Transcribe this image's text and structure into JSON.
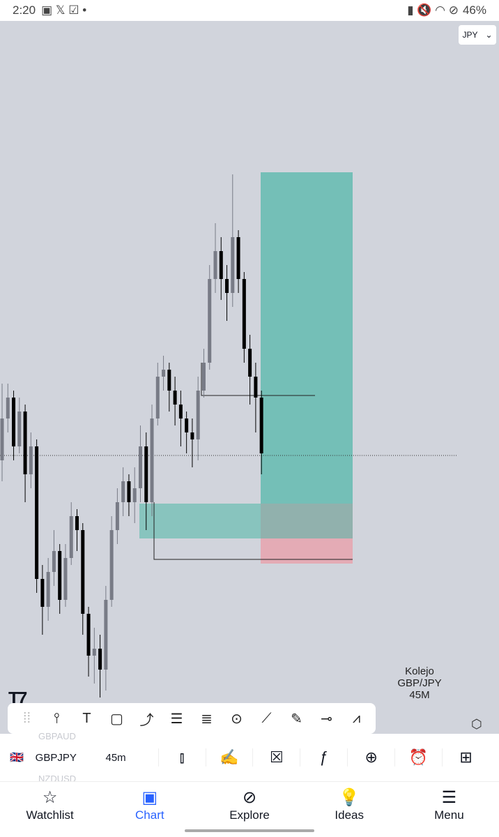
{
  "status": {
    "time": "2:20",
    "battery": "46%"
  },
  "chart": {
    "currency": "JPY",
    "symbol": "GBPJPY",
    "interval": "45m",
    "signature": [
      "Kolejo",
      "GBP/JPY",
      "45M"
    ],
    "bull_color": "#787b86",
    "bear_color": "#000000",
    "bg": "#d1d4dc",
    "current_price_line": 195.87,
    "position": {
      "type": "long",
      "target": 199.93,
      "entry": 195.18,
      "stop": 194.32,
      "profit_color": "#4db6a6",
      "loss_color": "#e8a0ab"
    },
    "zone": {
      "top": 195.18,
      "bottom": 194.68
    },
    "levels": [
      196.73,
      194.38
    ],
    "candles": [
      [
        195.8,
        196.9,
        195.5,
        196.4
      ],
      [
        196.4,
        196.9,
        196.2,
        196.7
      ],
      [
        196.7,
        196.8,
        195.8,
        196.0
      ],
      [
        196.0,
        196.7,
        195.9,
        196.5
      ],
      [
        196.5,
        196.6,
        195.2,
        195.6
      ],
      [
        195.6,
        196.2,
        195.4,
        196.0
      ],
      [
        196.0,
        196.1,
        193.9,
        194.1
      ],
      [
        194.1,
        194.3,
        193.3,
        193.7
      ],
      [
        193.7,
        194.4,
        193.5,
        194.2
      ],
      [
        194.2,
        194.8,
        194.0,
        194.5
      ],
      [
        194.5,
        194.6,
        193.6,
        193.8
      ],
      [
        193.8,
        194.6,
        193.7,
        194.4
      ],
      [
        194.4,
        195.2,
        194.3,
        195.0
      ],
      [
        195.0,
        195.1,
        194.5,
        194.8
      ],
      [
        194.8,
        194.9,
        193.3,
        193.6
      ],
      [
        193.6,
        193.7,
        192.7,
        193.0
      ],
      [
        193.0,
        193.4,
        192.6,
        193.1
      ],
      [
        193.1,
        193.3,
        192.4,
        192.8
      ],
      [
        192.8,
        194.0,
        192.5,
        193.8
      ],
      [
        193.8,
        195.0,
        193.7,
        194.8
      ],
      [
        194.8,
        195.4,
        194.6,
        195.2
      ],
      [
        195.2,
        195.7,
        195.0,
        195.5
      ],
      [
        195.5,
        195.6,
        195.0,
        195.2
      ],
      [
        195.2,
        195.7,
        194.9,
        195.4
      ],
      [
        195.4,
        196.3,
        195.2,
        196.0
      ],
      [
        196.0,
        196.2,
        194.8,
        195.2
      ],
      [
        195.2,
        196.6,
        195.0,
        196.4
      ],
      [
        196.4,
        197.2,
        196.3,
        197.0
      ],
      [
        197.0,
        197.3,
        196.8,
        197.1
      ],
      [
        197.1,
        197.2,
        196.5,
        196.8
      ],
      [
        196.8,
        197.0,
        196.3,
        196.6
      ],
      [
        196.6,
        196.8,
        196.0,
        196.4
      ],
      [
        196.4,
        196.5,
        195.9,
        196.2
      ],
      [
        196.2,
        196.4,
        195.7,
        196.1
      ],
      [
        196.1,
        197.0,
        195.8,
        196.8
      ],
      [
        196.8,
        197.4,
        196.7,
        197.2
      ],
      [
        197.2,
        198.6,
        197.1,
        198.4
      ],
      [
        198.4,
        199.2,
        198.2,
        198.8
      ],
      [
        198.8,
        199.0,
        198.1,
        198.4
      ],
      [
        198.4,
        198.6,
        197.8,
        198.2
      ],
      [
        198.2,
        199.9,
        198.0,
        199.0
      ],
      [
        199.0,
        199.1,
        198.2,
        198.4
      ],
      [
        198.4,
        198.5,
        197.2,
        197.4
      ],
      [
        197.4,
        197.6,
        196.6,
        197.0
      ],
      [
        197.0,
        197.2,
        196.2,
        196.7
      ],
      [
        196.7,
        196.8,
        195.6,
        195.9
      ]
    ]
  },
  "toolbar_icons": [
    "drag-handle",
    "cross-line",
    "text",
    "rectangle",
    "path",
    "parallel-channel",
    "fib-retracement",
    "circle",
    "trend-line",
    "brush",
    "ray",
    "polyline"
  ],
  "bottom_bar": {
    "symbol": "GBPJPY",
    "interval": "45m",
    "ghost_above": "GBPAUD",
    "ghost_below": "NZDUSD"
  },
  "nav": [
    {
      "label": "Watchlist"
    },
    {
      "label": "Chart",
      "active": true
    },
    {
      "label": "Explore"
    },
    {
      "label": "Ideas"
    },
    {
      "label": "Menu"
    }
  ],
  "accent": "#2962ff"
}
